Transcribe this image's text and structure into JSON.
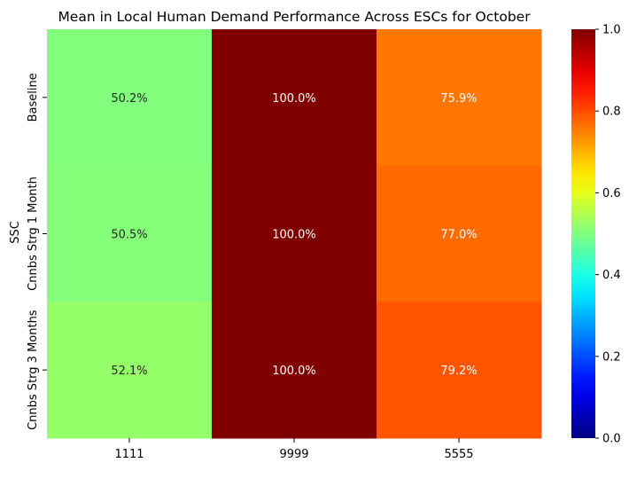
{
  "chart_data": {
    "type": "heatmap",
    "title": "Mean in Local Human Demand Performance Across ESCs for October",
    "xlabel": "",
    "ylabel": "SSC",
    "x_categories": [
      "1111",
      "9999",
      "5555"
    ],
    "y_categories": [
      "Baseline",
      "Cnnbs Strg 1 Month",
      "Cnnbs Strg 3 Months"
    ],
    "values": [
      [
        0.502,
        1.0,
        0.759
      ],
      [
        0.505,
        1.0,
        0.77
      ],
      [
        0.521,
        1.0,
        0.792
      ]
    ],
    "cell_labels": [
      [
        "50.2%",
        "100.0%",
        "75.9%"
      ],
      [
        "50.5%",
        "100.0%",
        "77.0%"
      ],
      [
        "52.1%",
        "100.0%",
        "79.2%"
      ]
    ],
    "colormap": "jet",
    "colorbar": {
      "range": [
        0,
        1
      ],
      "ticks": [
        "0.0",
        "0.2",
        "0.4",
        "0.6",
        "0.8",
        "1.0"
      ]
    }
  }
}
